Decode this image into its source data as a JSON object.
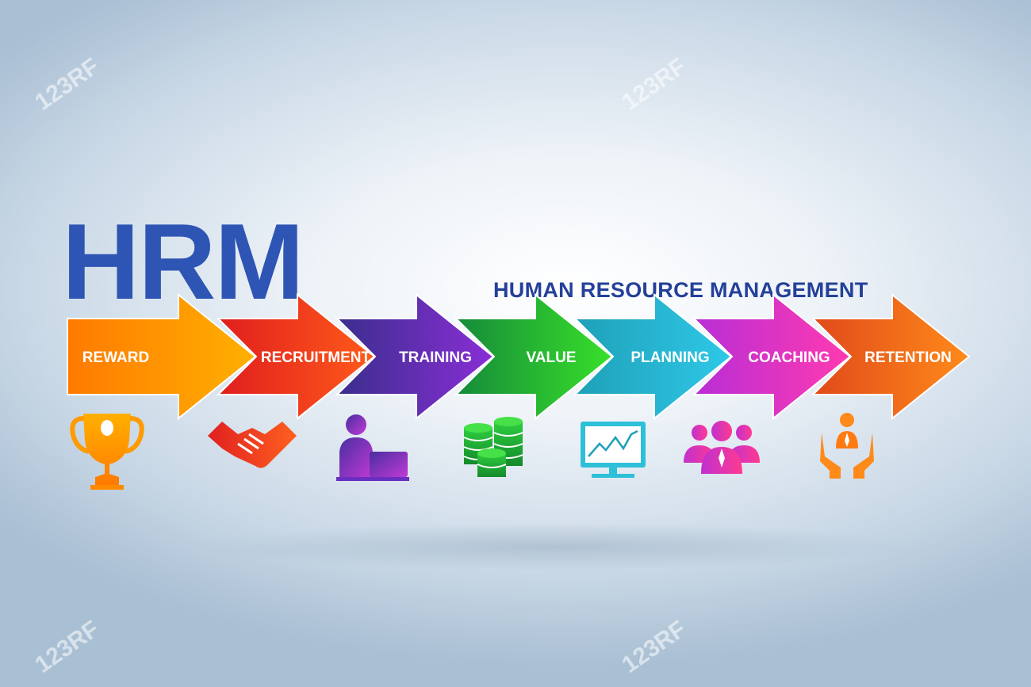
{
  "title": "HRM",
  "subtitle": "HUMAN RESOURCE MANAGEMENT",
  "watermark": "123RF",
  "steps": [
    {
      "label": "REWARD",
      "icon": "trophy-icon",
      "color_start": "#ff7a00",
      "color_end": "#ffb000"
    },
    {
      "label": "RECRUITMENT",
      "icon": "handshake-icon",
      "color_start": "#e01e1e",
      "color_end": "#ff5a1a"
    },
    {
      "label": "TRAINING",
      "icon": "person-laptop-icon",
      "color_start": "#3a2e8c",
      "color_end": "#8a2ed6"
    },
    {
      "label": "VALUE",
      "icon": "coins-icon",
      "color_start": "#158a3a",
      "color_end": "#38e02a"
    },
    {
      "label": "PLANNING",
      "icon": "monitor-chart-icon",
      "color_start": "#1fa0b8",
      "color_end": "#2ec8e8"
    },
    {
      "label": "COACHING",
      "icon": "team-icon",
      "color_start": "#b82ed6",
      "color_end": "#ff3ab0"
    },
    {
      "label": "RETENTION",
      "icon": "hands-protect-person-icon",
      "color_start": "#e04a1a",
      "color_end": "#ff8a1a"
    }
  ]
}
